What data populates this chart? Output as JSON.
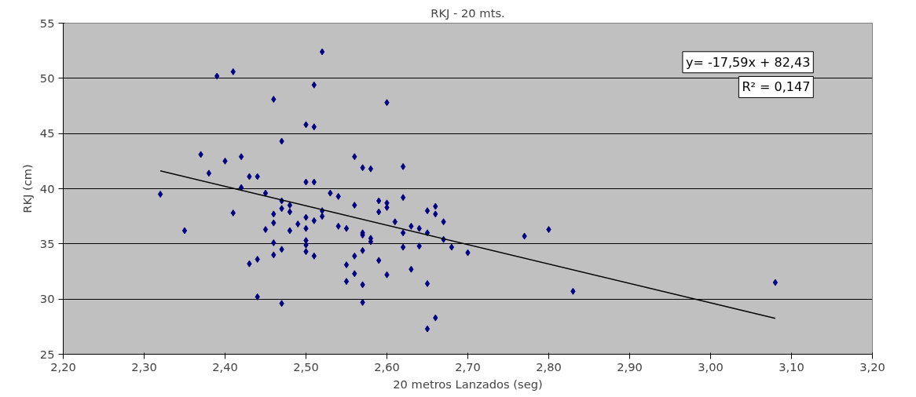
{
  "chart_data": {
    "type": "scatter",
    "title": "RKJ - 20 mts.",
    "xlabel": "20 metros Lanzados (seg)",
    "ylabel": "RKJ (cm)",
    "xlim": [
      2.2,
      3.2
    ],
    "xticks": [
      {
        "value": 2.2,
        "label": "2,20"
      },
      {
        "value": 2.3,
        "label": "2,30"
      },
      {
        "value": 2.4,
        "label": "2,40"
      },
      {
        "value": 2.5,
        "label": "2,50"
      },
      {
        "value": 2.6,
        "label": "2,60"
      },
      {
        "value": 2.7,
        "label": "2,70"
      },
      {
        "value": 2.8,
        "label": "2,80"
      },
      {
        "value": 2.9,
        "label": "2,90"
      },
      {
        "value": 3.0,
        "label": "3,00"
      },
      {
        "value": 3.1,
        "label": "3,10"
      },
      {
        "value": 3.2,
        "label": "3,20"
      }
    ],
    "ylim": [
      25,
      55
    ],
    "yticks": [
      25,
      30,
      35,
      40,
      45,
      50,
      55
    ],
    "grid": "y",
    "marker": "diamond",
    "annotations": [
      "y= -17,59x + 82,43",
      "R² = 0,147"
    ],
    "series": [
      {
        "color": "#000080",
        "x": [
          2.32,
          2.35,
          2.37,
          2.38,
          2.39,
          2.4,
          2.41,
          2.41,
          2.42,
          2.42,
          2.43,
          2.43,
          2.44,
          2.44,
          2.44,
          2.45,
          2.45,
          2.46,
          2.46,
          2.46,
          2.46,
          2.46,
          2.47,
          2.47,
          2.47,
          2.47,
          2.47,
          2.48,
          2.48,
          2.48,
          2.49,
          2.5,
          2.5,
          2.5,
          2.5,
          2.5,
          2.5,
          2.5,
          2.51,
          2.51,
          2.51,
          2.51,
          2.51,
          2.52,
          2.52,
          2.52,
          2.53,
          2.54,
          2.54,
          2.55,
          2.55,
          2.55,
          2.56,
          2.56,
          2.56,
          2.56,
          2.57,
          2.57,
          2.57,
          2.57,
          2.57,
          2.57,
          2.58,
          2.58,
          2.58,
          2.59,
          2.59,
          2.59,
          2.6,
          2.6,
          2.6,
          2.6,
          2.61,
          2.62,
          2.62,
          2.62,
          2.62,
          2.63,
          2.63,
          2.64,
          2.64,
          2.65,
          2.65,
          2.65,
          2.65,
          2.66,
          2.66,
          2.66,
          2.67,
          2.67,
          2.68,
          2.7,
          2.77,
          2.8,
          2.83,
          3.08
        ],
        "values": [
          39.5,
          36.2,
          43.1,
          41.4,
          50.2,
          42.5,
          50.6,
          37.8,
          42.9,
          40.1,
          41.1,
          33.2,
          41.1,
          33.6,
          30.2,
          39.6,
          36.3,
          48.1,
          37.7,
          36.9,
          35.1,
          34.0,
          44.3,
          38.9,
          38.2,
          34.5,
          29.6,
          38.5,
          37.9,
          36.2,
          36.8,
          45.8,
          40.6,
          37.4,
          36.4,
          35.3,
          34.9,
          34.3,
          49.4,
          45.6,
          40.6,
          37.1,
          33.9,
          52.4,
          38.0,
          37.5,
          39.6,
          39.3,
          36.6,
          36.4,
          33.1,
          31.6,
          42.9,
          38.5,
          33.9,
          32.3,
          41.9,
          36.0,
          35.8,
          34.4,
          31.3,
          29.7,
          41.8,
          35.5,
          35.2,
          38.9,
          37.9,
          33.5,
          47.8,
          38.7,
          38.3,
          32.2,
          37.0,
          42.0,
          39.2,
          36.0,
          34.7,
          36.6,
          32.7,
          36.4,
          34.8,
          38.0,
          36.0,
          31.4,
          27.3,
          38.4,
          37.7,
          28.3,
          37.0,
          35.4,
          34.7,
          34.2,
          35.7,
          36.3,
          30.7,
          31.5
        ]
      },
      {
        "type": "line",
        "color": "#000000",
        "x": [
          2.32,
          3.08
        ],
        "values": [
          41.62,
          28.25
        ],
        "line_style": "solid",
        "marker": "none"
      }
    ]
  }
}
